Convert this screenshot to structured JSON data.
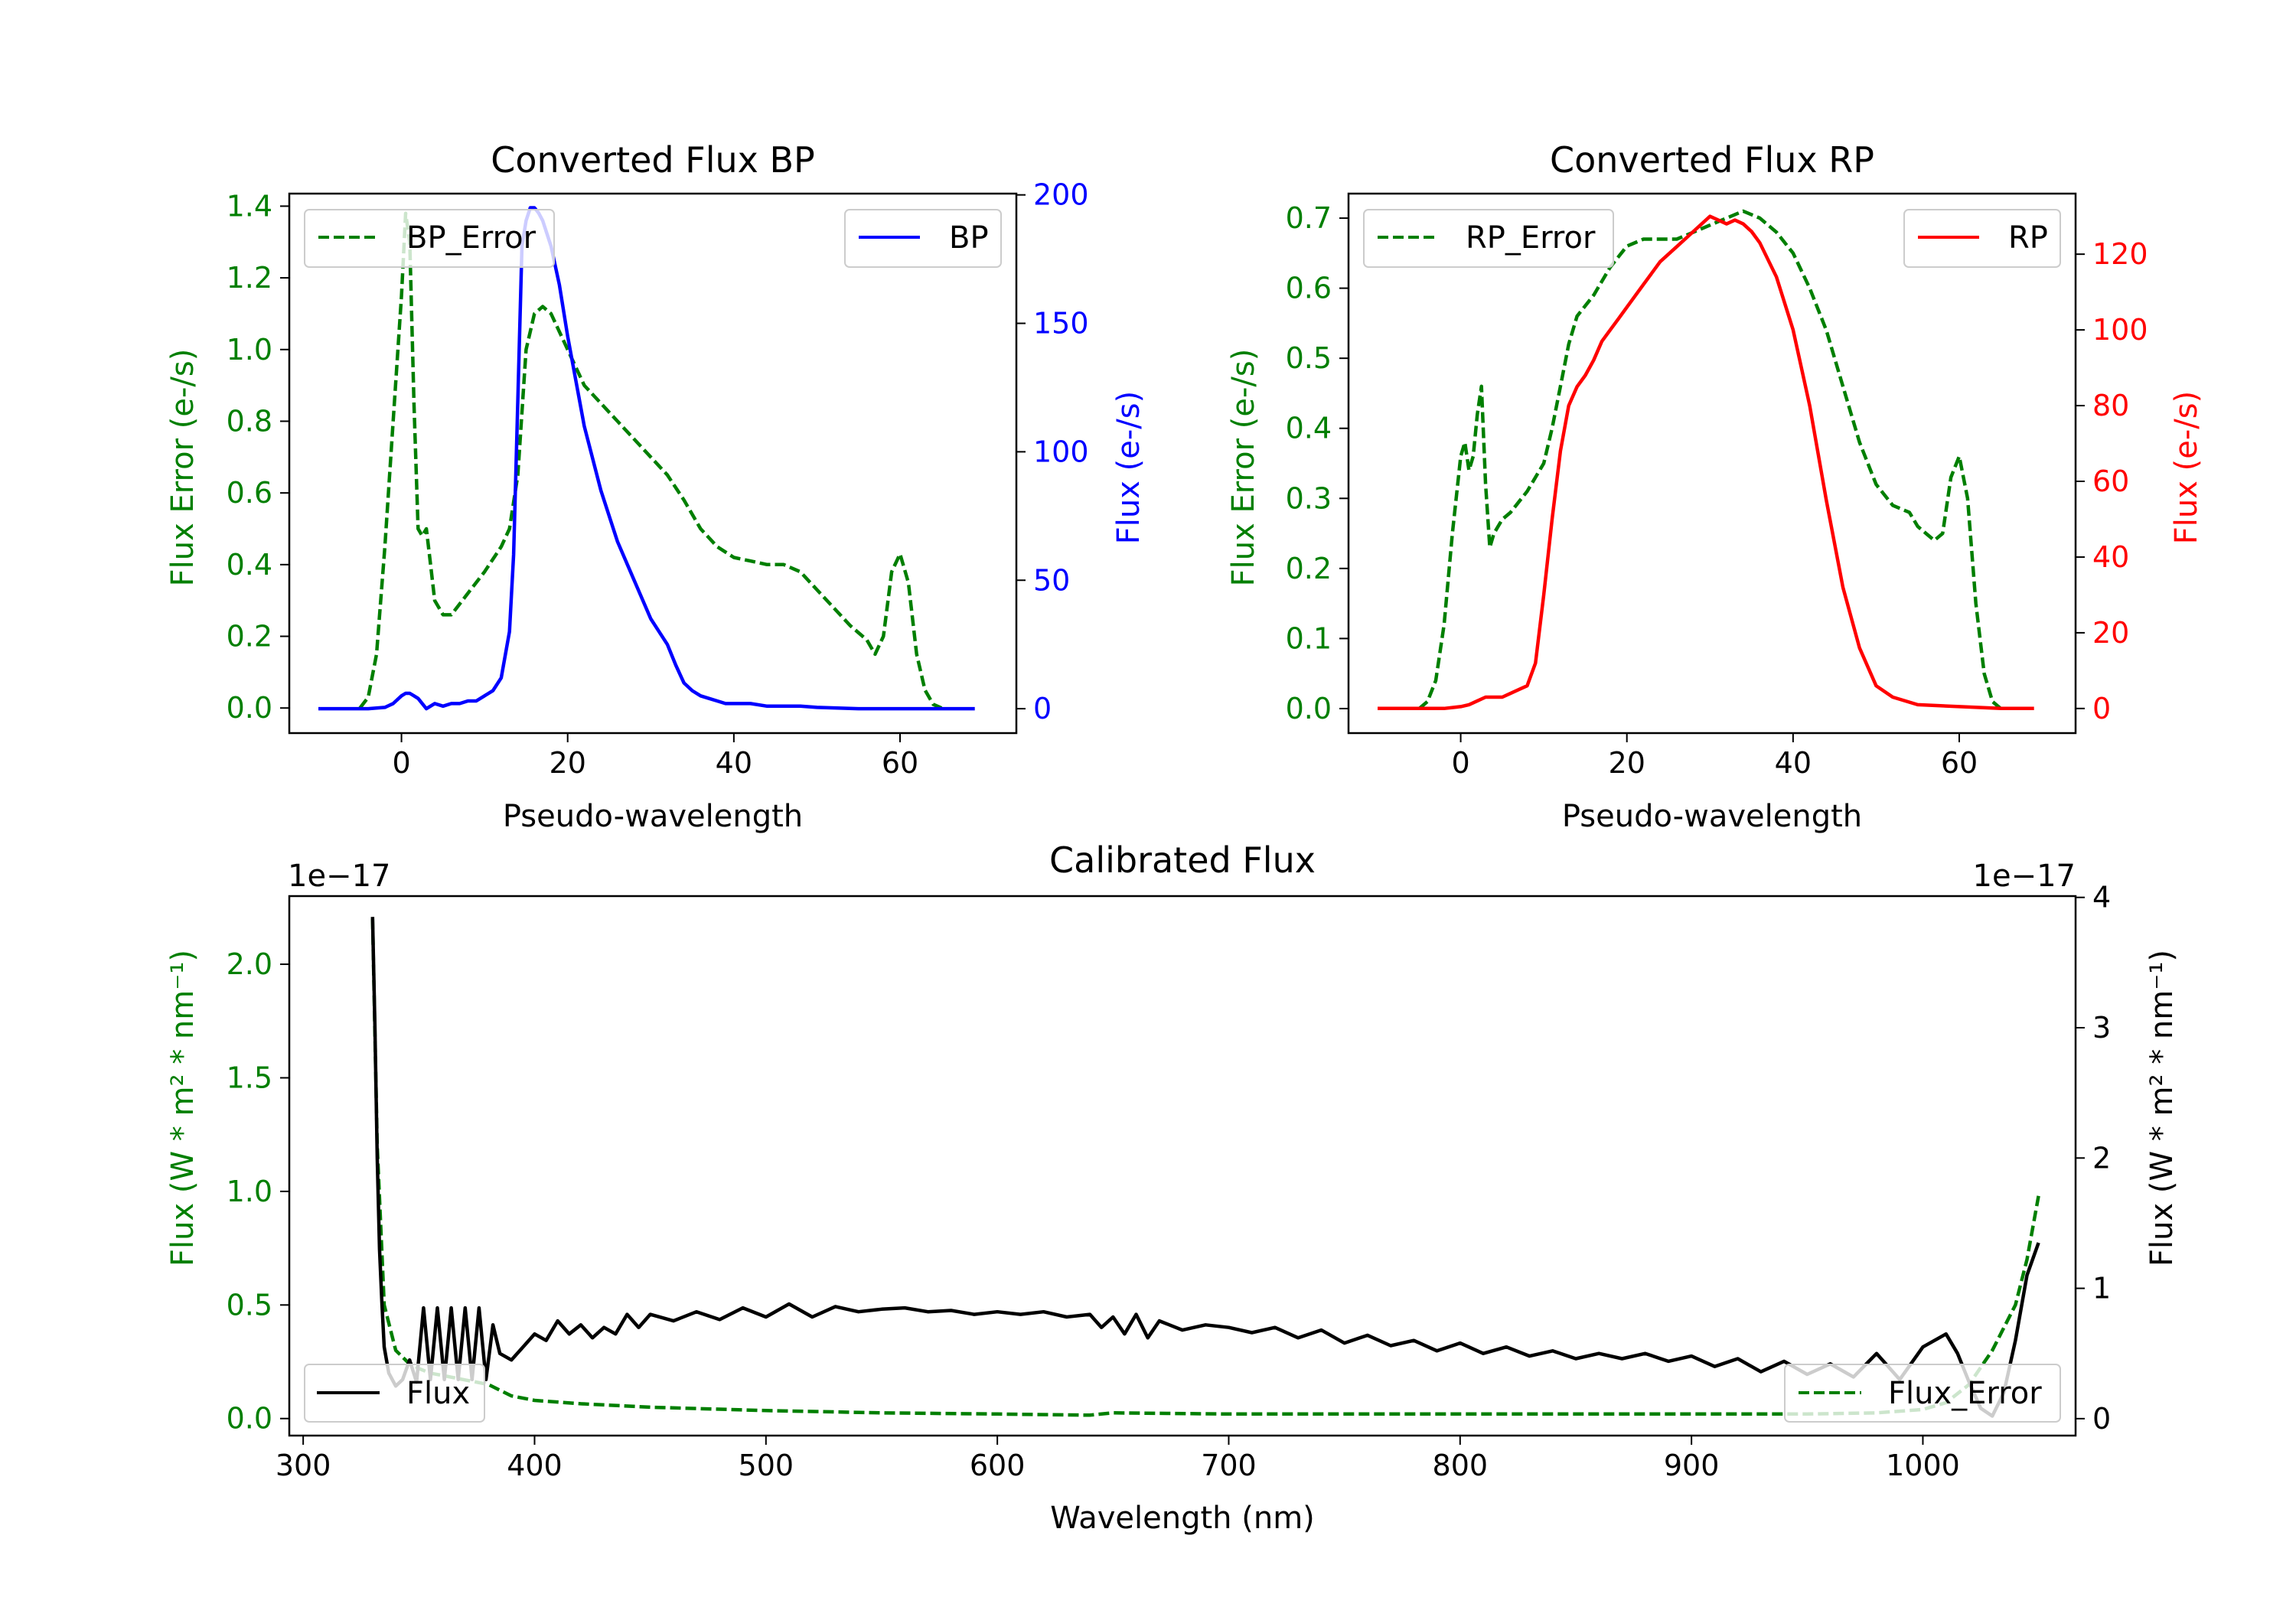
{
  "colors": {
    "bp": "#0000ff",
    "rp": "#ff0000",
    "error": "#007f00",
    "flux": "#000000",
    "frame": "#000000",
    "background": "#ffffff"
  },
  "chart_data": [
    {
      "id": "bp",
      "type": "line",
      "title": "Converted Flux BP",
      "xlabel": "Pseudo-wavelength",
      "ylabel_left": "Flux Error (e-/s)",
      "ylabel_right": "Flux (e-/s)",
      "xlim": [
        -13.5,
        74
      ],
      "ylim_left": [
        -0.07,
        1.435
      ],
      "ylim_right": [
        -9.5,
        200.5
      ],
      "xticks": [
        0,
        20,
        40,
        60
      ],
      "xtick_labels": [
        "0",
        "20",
        "40",
        "60"
      ],
      "yticks_left": [
        0,
        0.2,
        0.4,
        0.6,
        0.8,
        1.0,
        1.2,
        1.4
      ],
      "ytick_labels_left": [
        "0.0",
        "0.2",
        "0.4",
        "0.6",
        "0.8",
        "1.0",
        "1.2",
        "1.4"
      ],
      "yticks_right": [
        0,
        50,
        100,
        150,
        200
      ],
      "ytick_labels_right": [
        "0",
        "50",
        "100",
        "150",
        "200"
      ],
      "legend_left": {
        "label": "BP_Error",
        "placement": "upper left",
        "style": "dashed"
      },
      "legend_right": {
        "label": "BP",
        "placement": "upper right",
        "style": "solid"
      },
      "series": [
        {
          "name": "BP_Error",
          "axis": "left",
          "style": "dashed",
          "color": "#007f00",
          "x": [
            -5,
            -4,
            -3,
            -2,
            -1,
            0,
            0.5,
            1,
            1.5,
            2,
            2.5,
            3,
            3.5,
            4,
            5,
            6,
            8,
            10,
            12,
            13,
            14,
            15,
            16,
            17,
            18,
            20,
            22,
            24,
            26,
            28,
            30,
            32,
            34,
            36,
            38,
            40,
            42,
            44,
            46,
            48,
            50,
            52,
            54,
            56,
            57,
            58,
            59,
            60,
            61,
            62,
            63,
            64,
            65
          ],
          "values": [
            0.0,
            0.03,
            0.15,
            0.45,
            0.8,
            1.15,
            1.38,
            1.3,
            0.85,
            0.5,
            0.48,
            0.5,
            0.4,
            0.3,
            0.26,
            0.26,
            0.32,
            0.38,
            0.45,
            0.5,
            0.65,
            1.0,
            1.1,
            1.12,
            1.1,
            1.0,
            0.9,
            0.85,
            0.8,
            0.75,
            0.7,
            0.65,
            0.58,
            0.5,
            0.45,
            0.42,
            0.41,
            0.4,
            0.4,
            0.38,
            0.33,
            0.28,
            0.23,
            0.19,
            0.15,
            0.2,
            0.38,
            0.43,
            0.35,
            0.15,
            0.05,
            0.01,
            0.0
          ]
        },
        {
          "name": "BP",
          "axis": "right",
          "style": "solid",
          "color": "#0000ff",
          "x": [
            -10,
            -4,
            -2,
            -1,
            0,
            0.5,
            1,
            1.5,
            2,
            3,
            4,
            5,
            6,
            7,
            8,
            9,
            10,
            11,
            12,
            13,
            13.5,
            14,
            14.5,
            15,
            15.5,
            16,
            16.5,
            17,
            18,
            19,
            20,
            22,
            24,
            26,
            28,
            30,
            32,
            33,
            34,
            35,
            36,
            37,
            38,
            39,
            40,
            42,
            44,
            46,
            48,
            50,
            55,
            60,
            65,
            69
          ],
          "values": [
            0,
            0,
            0.5,
            2,
            5,
            6,
            6,
            5,
            4,
            0,
            2,
            1,
            2,
            2,
            3,
            3,
            5,
            7,
            12,
            30,
            60,
            120,
            180,
            190,
            195,
            195,
            193,
            190,
            180,
            165,
            145,
            110,
            85,
            65,
            50,
            35,
            25,
            17,
            10,
            7,
            5,
            4,
            3,
            2,
            2,
            2,
            1,
            1,
            1,
            0.5,
            0,
            0,
            0,
            0
          ]
        }
      ]
    },
    {
      "id": "rp",
      "type": "line",
      "title": "Converted Flux RP",
      "xlabel": "Pseudo-wavelength",
      "ylabel_left": "Flux Error (e-/s)",
      "ylabel_right": "Flux (e-/s)",
      "xlim": [
        -13.5,
        74
      ],
      "ylim_left": [
        -0.035,
        0.735
      ],
      "ylim_right": [
        -6.5,
        136
      ],
      "xticks": [
        0,
        20,
        40,
        60
      ],
      "xtick_labels": [
        "0",
        "20",
        "40",
        "60"
      ],
      "yticks_left": [
        0,
        0.1,
        0.2,
        0.3,
        0.4,
        0.5,
        0.6,
        0.7
      ],
      "ytick_labels_left": [
        "0.0",
        "0.1",
        "0.2",
        "0.3",
        "0.4",
        "0.5",
        "0.6",
        "0.7"
      ],
      "yticks_right": [
        0,
        20,
        40,
        60,
        80,
        100,
        120
      ],
      "ytick_labels_right": [
        "0",
        "20",
        "40",
        "60",
        "80",
        "100",
        "120"
      ],
      "legend_left": {
        "label": "RP_Error",
        "placement": "upper left",
        "style": "dashed"
      },
      "legend_right": {
        "label": "RP",
        "placement": "upper right",
        "style": "solid"
      },
      "series": [
        {
          "name": "RP_Error",
          "axis": "left",
          "style": "dashed",
          "color": "#007f00",
          "x": [
            -5,
            -4,
            -3,
            -2,
            -1,
            0,
            0.5,
            1,
            1.5,
            2,
            2.5,
            3,
            3.5,
            4,
            5,
            6,
            8,
            10,
            11,
            12,
            13,
            14,
            16,
            18,
            20,
            22,
            24,
            26,
            28,
            30,
            32,
            34,
            36,
            38,
            40,
            42,
            44,
            46,
            48,
            50,
            52,
            54,
            55,
            56,
            57,
            58,
            59,
            60,
            61,
            62,
            63,
            64,
            65
          ],
          "values": [
            0.0,
            0.01,
            0.04,
            0.12,
            0.25,
            0.36,
            0.38,
            0.34,
            0.36,
            0.42,
            0.46,
            0.32,
            0.23,
            0.25,
            0.27,
            0.28,
            0.31,
            0.35,
            0.4,
            0.46,
            0.52,
            0.56,
            0.59,
            0.63,
            0.66,
            0.67,
            0.67,
            0.67,
            0.68,
            0.69,
            0.7,
            0.71,
            0.7,
            0.68,
            0.65,
            0.6,
            0.54,
            0.46,
            0.38,
            0.32,
            0.29,
            0.28,
            0.26,
            0.25,
            0.24,
            0.25,
            0.33,
            0.36,
            0.3,
            0.15,
            0.05,
            0.01,
            0.0
          ]
        },
        {
          "name": "RP",
          "axis": "right",
          "style": "solid",
          "color": "#ff0000",
          "x": [
            -10,
            -2,
            0,
            1,
            2,
            3,
            4,
            5,
            6,
            7,
            8,
            9,
            10,
            11,
            12,
            13,
            14,
            15,
            16,
            17,
            18,
            19,
            20,
            22,
            24,
            26,
            28,
            30,
            31,
            32,
            33,
            34,
            35,
            36,
            38,
            40,
            42,
            44,
            46,
            48,
            50,
            52,
            55,
            60,
            65,
            69
          ],
          "values": [
            0,
            0,
            0.5,
            1,
            2,
            3,
            3,
            3,
            4,
            5,
            6,
            12,
            30,
            50,
            68,
            80,
            85,
            88,
            92,
            97,
            100,
            103,
            106,
            112,
            118,
            122,
            126,
            130,
            129,
            128,
            129,
            128,
            126,
            123,
            114,
            100,
            80,
            55,
            32,
            16,
            6,
            3,
            1,
            0.5,
            0,
            0
          ]
        }
      ]
    },
    {
      "id": "calibrated",
      "type": "line",
      "title": "Calibrated Flux",
      "xlabel": "Wavelength (nm)",
      "ylabel_left": "Flux (W * m² * nm⁻¹)",
      "ylabel_right": "Flux (W * m² * nm⁻¹)",
      "offset_left": "1e−17",
      "offset_right": "1e−17",
      "xlim": [
        294,
        1066
      ],
      "ylim_left": [
        -0.075,
        2.3
      ],
      "ylim_right": [
        -0.13,
        4.01
      ],
      "xticks": [
        300,
        400,
        500,
        600,
        700,
        800,
        900,
        1000
      ],
      "xtick_labels": [
        "300",
        "400",
        "500",
        "600",
        "700",
        "800",
        "900",
        "1000"
      ],
      "yticks_left": [
        0,
        0.5,
        1.0,
        1.5,
        2.0
      ],
      "ytick_labels_left": [
        "0.0",
        "0.5",
        "1.0",
        "1.5",
        "2.0"
      ],
      "yticks_right": [
        0,
        1,
        2,
        3,
        4
      ],
      "ytick_labels_right": [
        "0",
        "1",
        "2",
        "3",
        "4"
      ],
      "legend_left": {
        "label": "Flux",
        "placement": "lower left",
        "style": "solid"
      },
      "legend_right": {
        "label": "Flux_Error",
        "placement": "lower right",
        "style": "dashed"
      },
      "series": [
        {
          "name": "Flux_Error",
          "axis": "left",
          "style": "dashed",
          "color": "#007f00",
          "x": [
            330,
            332,
            335,
            340,
            345,
            350,
            355,
            360,
            370,
            380,
            390,
            400,
            420,
            450,
            500,
            550,
            600,
            640,
            650,
            700,
            800,
            900,
            950,
            980,
            1000,
            1010,
            1020,
            1030,
            1040,
            1045,
            1050
          ],
          "values": [
            2.2,
            1.2,
            0.5,
            0.3,
            0.25,
            0.22,
            0.2,
            0.19,
            0.17,
            0.15,
            0.1,
            0.08,
            0.065,
            0.05,
            0.035,
            0.025,
            0.02,
            0.015,
            0.025,
            0.02,
            0.02,
            0.02,
            0.02,
            0.025,
            0.04,
            0.07,
            0.15,
            0.3,
            0.5,
            0.7,
            0.98
          ]
        },
        {
          "name": "Flux",
          "axis": "right",
          "style": "solid",
          "color": "#000000",
          "x": [
            330,
            331,
            332,
            333,
            334,
            335,
            337,
            340,
            343,
            346,
            349,
            352,
            355,
            358,
            361,
            364,
            367,
            370,
            373,
            376,
            379,
            382,
            385,
            390,
            395,
            400,
            405,
            410,
            415,
            420,
            425,
            430,
            435,
            440,
            445,
            450,
            460,
            470,
            480,
            490,
            500,
            510,
            520,
            530,
            540,
            550,
            560,
            570,
            580,
            590,
            600,
            610,
            620,
            630,
            640,
            645,
            650,
            655,
            660,
            665,
            670,
            680,
            690,
            700,
            710,
            720,
            730,
            740,
            750,
            760,
            770,
            780,
            790,
            800,
            810,
            820,
            830,
            840,
            850,
            860,
            870,
            880,
            890,
            900,
            910,
            920,
            930,
            940,
            950,
            960,
            970,
            980,
            990,
            1000,
            1010,
            1015,
            1020,
            1025,
            1030,
            1035,
            1040,
            1045,
            1050
          ],
          "values": [
            3.85,
            3.0,
            2.0,
            1.3,
            0.9,
            0.55,
            0.35,
            0.25,
            0.3,
            0.45,
            0.28,
            0.85,
            0.3,
            0.85,
            0.3,
            0.85,
            0.3,
            0.85,
            0.3,
            0.85,
            0.3,
            0.72,
            0.5,
            0.45,
            0.55,
            0.65,
            0.6,
            0.75,
            0.65,
            0.72,
            0.62,
            0.7,
            0.65,
            0.8,
            0.7,
            0.8,
            0.75,
            0.82,
            0.76,
            0.85,
            0.78,
            0.88,
            0.78,
            0.86,
            0.82,
            0.84,
            0.85,
            0.82,
            0.83,
            0.8,
            0.82,
            0.8,
            0.82,
            0.78,
            0.8,
            0.7,
            0.78,
            0.65,
            0.8,
            0.62,
            0.75,
            0.68,
            0.72,
            0.7,
            0.66,
            0.7,
            0.62,
            0.68,
            0.58,
            0.64,
            0.56,
            0.6,
            0.52,
            0.58,
            0.5,
            0.55,
            0.48,
            0.52,
            0.46,
            0.5,
            0.46,
            0.5,
            0.44,
            0.48,
            0.4,
            0.46,
            0.36,
            0.44,
            0.34,
            0.42,
            0.32,
            0.5,
            0.3,
            0.55,
            0.65,
            0.5,
            0.28,
            0.08,
            0.02,
            0.2,
            0.6,
            1.1,
            1.35
          ]
        }
      ]
    }
  ]
}
